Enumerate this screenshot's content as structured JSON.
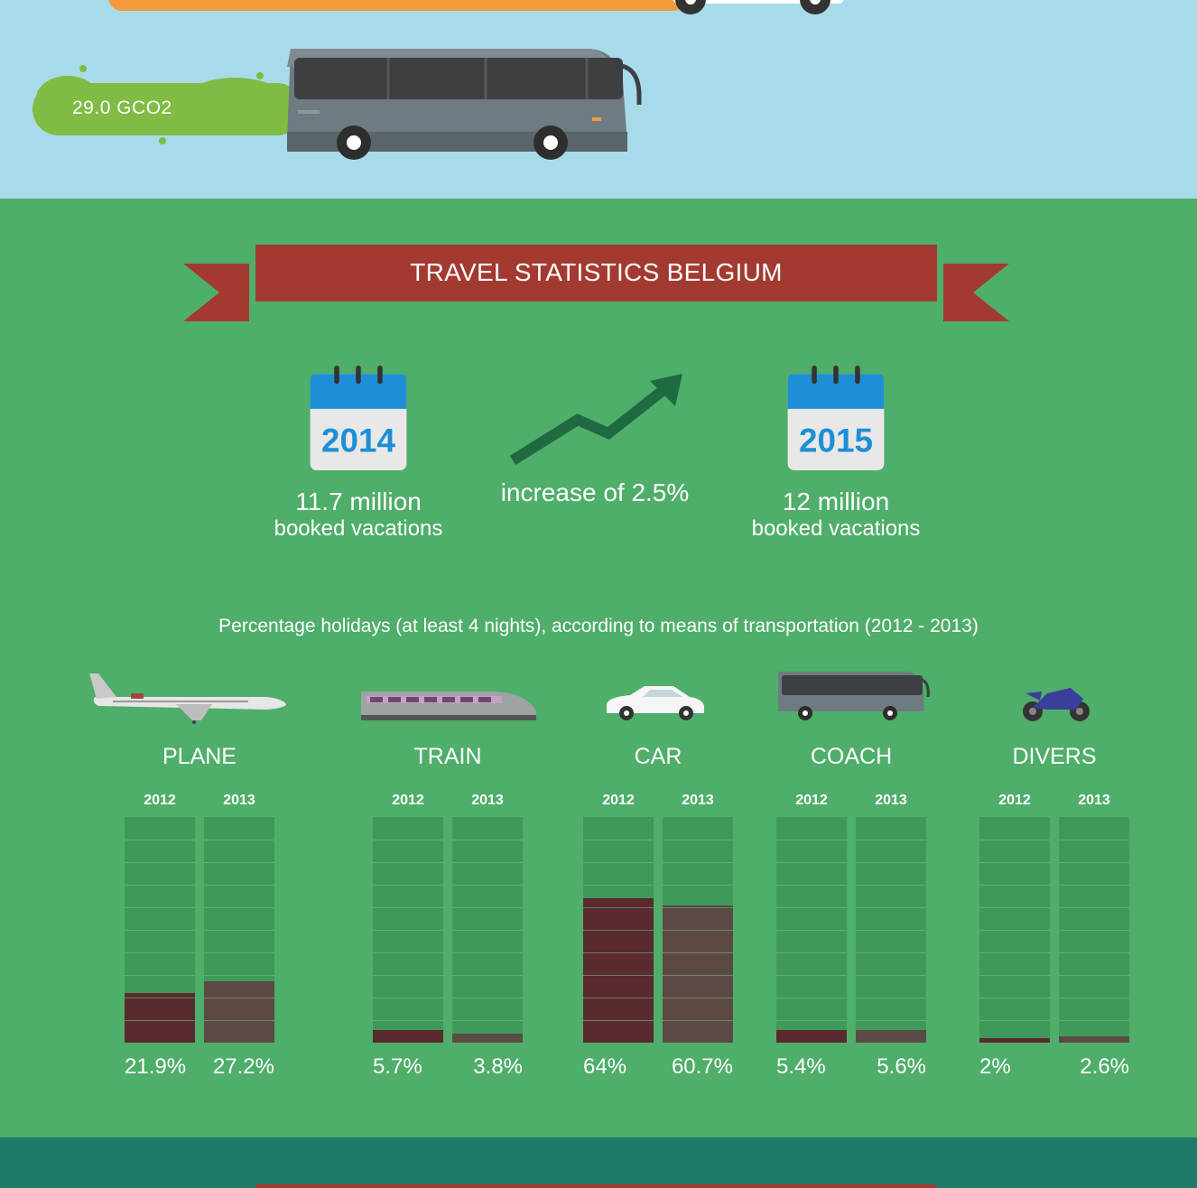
{
  "top": {
    "emission_label": "29.0 GCO2"
  },
  "banner": {
    "title": "TRAVEL STATISTICS BELGIUM"
  },
  "stats": {
    "left": {
      "year": "2014",
      "value": "11.7 million",
      "caption": "booked vacations"
    },
    "middle": {
      "text": "increase of 2.5%"
    },
    "right": {
      "year": "2015",
      "value": "12 million",
      "caption": "booked vacations"
    }
  },
  "colors": {
    "sky": "#a8dbe9",
    "green_bg": "#4fae6a",
    "bar_bg": "#3f9a5a",
    "bar_2012": "#5a2a2e",
    "bar_2013": "#5b4a44",
    "banner": "#a33a31",
    "calendar_blue": "#1e8fd6",
    "footer": "#1f7a66"
  },
  "chart_data": {
    "type": "bar",
    "title": "Percentage holidays (at least 4 nights), according to means of transportation (2012 - 2013)",
    "categories": [
      "PLANE",
      "TRAIN",
      "CAR",
      "COACH",
      "DIVERS"
    ],
    "icons": [
      "plane-icon",
      "train-icon",
      "car-icon",
      "coach-icon",
      "motorcycle-icon"
    ],
    "series": [
      {
        "name": "2012",
        "values": [
          21.9,
          5.7,
          64,
          5.4,
          2
        ],
        "labels": [
          "21.9%",
          "5.7%",
          "64%",
          "5.4%",
          "2%"
        ]
      },
      {
        "name": "2013",
        "values": [
          27.2,
          3.8,
          60.7,
          5.6,
          2.6
        ],
        "labels": [
          "27.2%",
          "3.8%",
          "60.7%",
          "5.6%",
          "2.6%"
        ]
      }
    ],
    "ylim": [
      0,
      100
    ]
  }
}
